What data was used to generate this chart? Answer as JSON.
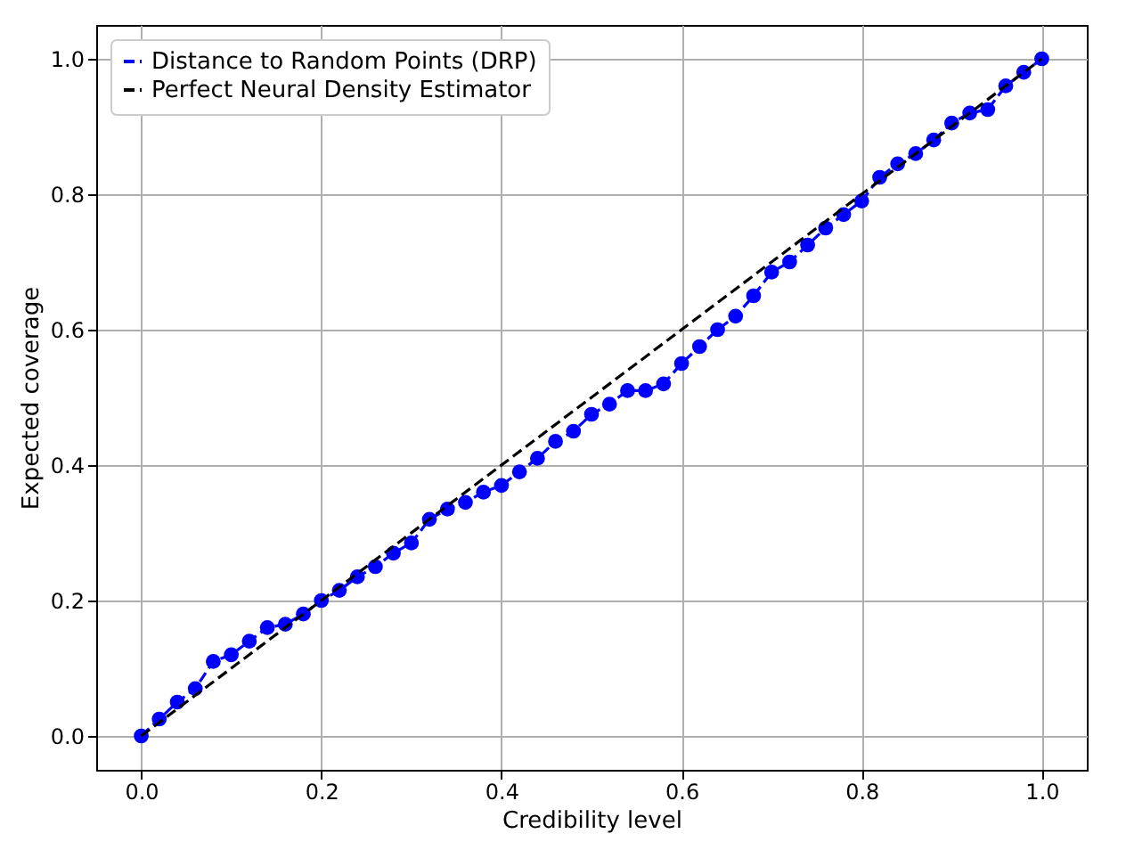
{
  "chart_data": {
    "type": "line",
    "xlabel": "Credibility level",
    "ylabel": "Expected coverage",
    "xlim": [
      -0.05,
      1.05
    ],
    "ylim": [
      -0.05,
      1.05
    ],
    "xticks": [
      {
        "value": 0,
        "label": "0.0"
      },
      0.2,
      0.4,
      0.6,
      0.8,
      {
        "value": 1,
        "label": "1.0"
      }
    ],
    "yticks": [
      {
        "value": 0,
        "label": "0.0"
      },
      0.2,
      0.4,
      0.6,
      0.8,
      {
        "value": 1,
        "label": "1.0"
      }
    ],
    "grid": true,
    "legend": "top left",
    "series": [
      {
        "name": "Distance to Random Points (DRP)",
        "color": "#0000ff",
        "marker": "circle",
        "line_style": "dashed",
        "x": [
          0,
          0.02,
          0.04,
          0.06,
          0.08,
          0.1,
          0.12,
          0.14,
          0.16,
          0.18,
          0.2,
          0.22,
          0.24,
          0.26,
          0.28,
          0.3,
          0.32,
          0.34,
          0.36,
          0.38,
          0.4,
          0.42,
          0.44,
          0.46,
          0.48,
          0.5,
          0.52,
          0.54,
          0.56,
          0.58,
          0.6,
          0.62,
          0.64,
          0.66,
          0.68,
          0.7,
          0.72,
          0.74,
          0.76,
          0.78,
          0.8,
          0.82,
          0.84,
          0.86,
          0.88,
          0.9,
          0.92,
          0.94,
          0.96,
          0.98,
          1
        ],
        "values": [
          0,
          0.025,
          0.05,
          0.07,
          0.11,
          0.12,
          0.14,
          0.16,
          0.165,
          0.18,
          0.2,
          0.215,
          0.235,
          0.25,
          0.27,
          0.285,
          0.32,
          0.335,
          0.345,
          0.36,
          0.37,
          0.39,
          0.41,
          0.435,
          0.45,
          0.475,
          0.49,
          0.51,
          0.51,
          0.52,
          0.55,
          0.575,
          0.6,
          0.62,
          0.65,
          0.685,
          0.7,
          0.725,
          0.75,
          0.77,
          0.79,
          0.825,
          0.845,
          0.86,
          0.88,
          0.905,
          0.92,
          0.925,
          0.96,
          0.98,
          1
        ]
      },
      {
        "name": "Perfect Neural Density Estimator",
        "color": "#000000",
        "marker": "none",
        "line_style": "dashed",
        "x": [
          0,
          1
        ],
        "values": [
          0,
          1
        ]
      }
    ]
  }
}
